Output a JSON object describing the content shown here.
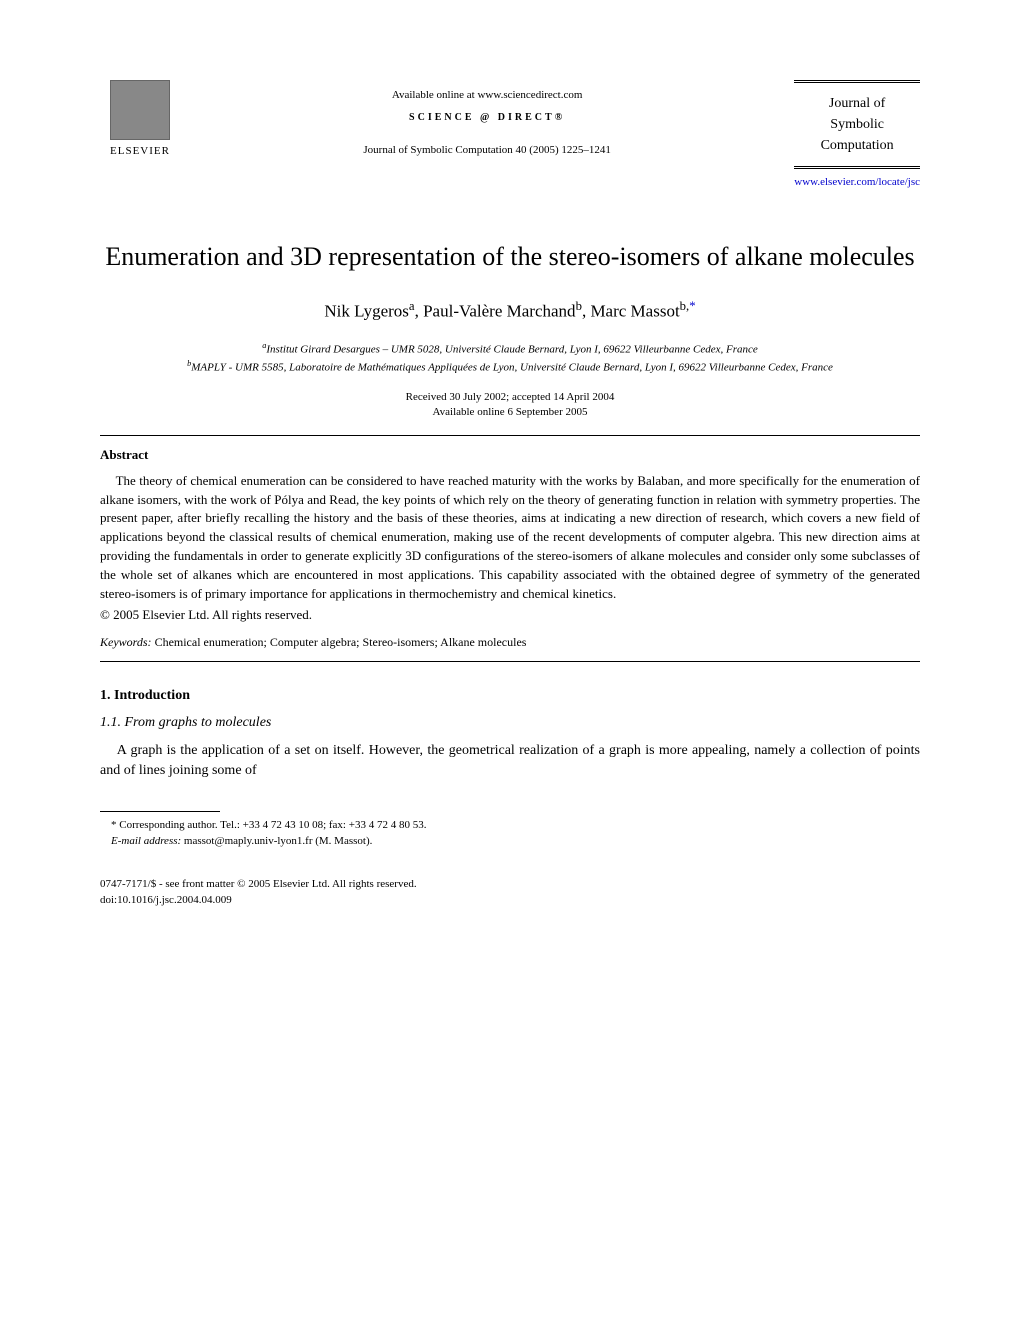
{
  "header": {
    "publisher": "ELSEVIER",
    "available_online": "Available online at www.sciencedirect.com",
    "science_direct": "SCIENCE @ DIRECT®",
    "citation": "Journal of Symbolic Computation 40 (2005) 1225–1241",
    "journal_name_line1": "Journal of",
    "journal_name_line2": "Symbolic",
    "journal_name_line3": "Computation",
    "journal_url": "www.elsevier.com/locate/jsc"
  },
  "title": "Enumeration and 3D representation of the stereo-isomers of alkane molecules",
  "authors_html": "Nik Lygeros<sup>a</sup>, Paul-Valère Marchand<sup>b</sup>, Marc Massot<sup>b,</sup><sup class=\"sup-link\">*</sup>",
  "affiliations": {
    "a": "Institut Girard Desargues – UMR 5028, Université Claude Bernard, Lyon I, 69622 Villeurbanne Cedex, France",
    "b": "MAPLY - UMR 5585, Laboratoire de Mathématiques Appliquées de Lyon, Université Claude Bernard, Lyon I, 69622 Villeurbanne Cedex, France"
  },
  "dates": {
    "received": "Received 30 July 2002; accepted 14 April 2004",
    "online": "Available online 6 September 2005"
  },
  "abstract": {
    "heading": "Abstract",
    "text": "The theory of chemical enumeration can be considered to have reached maturity with the works by Balaban, and more specifically for the enumeration of alkane isomers, with the work of Pólya and Read, the key points of which rely on the theory of generating function in relation with symmetry properties. The present paper, after briefly recalling the history and the basis of these theories, aims at indicating a new direction of research, which covers a new field of applications beyond the classical results of chemical enumeration, making use of the recent developments of computer algebra. This new direction aims at providing the fundamentals in order to generate explicitly 3D configurations of the stereo-isomers of alkane molecules and consider only some subclasses of the whole set of alkanes which are encountered in most applications. This capability associated with the obtained degree of symmetry of the generated stereo-isomers is of primary importance for applications in thermochemistry and chemical kinetics.",
    "copyright": "© 2005 Elsevier Ltd. All rights reserved."
  },
  "keywords": {
    "label": "Keywords:",
    "text": " Chemical enumeration; Computer algebra; Stereo-isomers; Alkane molecules"
  },
  "section1": {
    "heading": "1. Introduction",
    "subheading": "1.1. From graphs to molecules",
    "paragraph": "A graph is the application of a set on itself. However, the geometrical realization of a graph is more appealing, namely a collection of points and of lines joining some of"
  },
  "footnote": {
    "corresponding": "* Corresponding author. Tel.: +33 4 72 43 10 08; fax: +33 4 72 4 80 53.",
    "email_label": "E-mail address:",
    "email": " massot@maply.univ-lyon1.fr (M. Massot)."
  },
  "footer": {
    "line1": "0747-7171/$ - see front matter © 2005 Elsevier Ltd. All rights reserved.",
    "line2": "doi:10.1016/j.jsc.2004.04.009"
  }
}
